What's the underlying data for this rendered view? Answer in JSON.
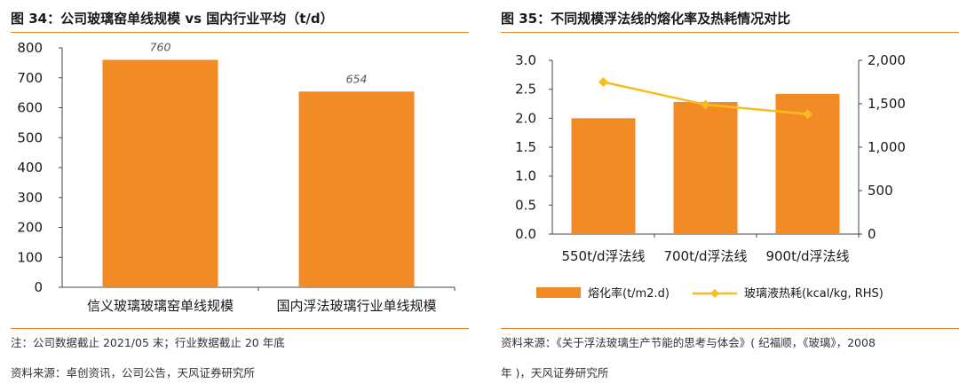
{
  "left_panel": {
    "title": "图 34：公司玻璃窑单线规模 vs 国内行业平均（t/d）",
    "note": "注：公司数据截止 2021/05 末；行业数据截止 20 年底",
    "source": "资料来源：卓创资讯，公司公告，天风证券研究所"
  },
  "right_panel": {
    "title": "图 35：不同规模浮法线的熔化率及热耗情况对比",
    "source_line1": "资料来源：《关于浮法玻璃生产节能的思考与体会》( 纪福顺，《玻璃》，2008",
    "source_line2": "年 )，天风证券研究所"
  },
  "colors": {
    "accent": "#ef8a2b",
    "bar": "#f28a25",
    "line": "#f7bc20"
  },
  "chart_data": [
    {
      "type": "bar",
      "categories": [
        "信义玻璃玻璃窑单线规模",
        "国内浮法玻璃行业单线规模"
      ],
      "values": [
        760,
        654
      ],
      "value_labels": [
        "760",
        "654"
      ],
      "ylim": [
        0,
        800
      ],
      "yticks": [
        0,
        100,
        200,
        300,
        400,
        500,
        600,
        700,
        800
      ],
      "ytick_labels": [
        "0",
        "100",
        "200",
        "300",
        "400",
        "500",
        "600",
        "700",
        "800"
      ],
      "grid": false
    },
    {
      "type": "bar+line",
      "categories": [
        "550t/d浮法线",
        "700t/d浮法线",
        "900t/d浮法线"
      ],
      "series": [
        {
          "name": "熔化率(t/m2.d)",
          "type": "bar",
          "axis": "left",
          "values": [
            2.0,
            2.28,
            2.42
          ]
        },
        {
          "name": "玻璃液热耗(kcal/kg, RHS)",
          "type": "line",
          "axis": "right",
          "values": [
            1750,
            1490,
            1380
          ]
        }
      ],
      "ylim_left": [
        0,
        3.0
      ],
      "yticks_left": [
        "0.0",
        "0.5",
        "1.0",
        "1.5",
        "2.0",
        "2.5",
        "3.0"
      ],
      "ylim_right": [
        0,
        2000
      ],
      "yticks_right": [
        "0",
        "500",
        "1,000",
        "1,500",
        "2,000"
      ],
      "legend_position": "bottom",
      "grid": false
    }
  ]
}
